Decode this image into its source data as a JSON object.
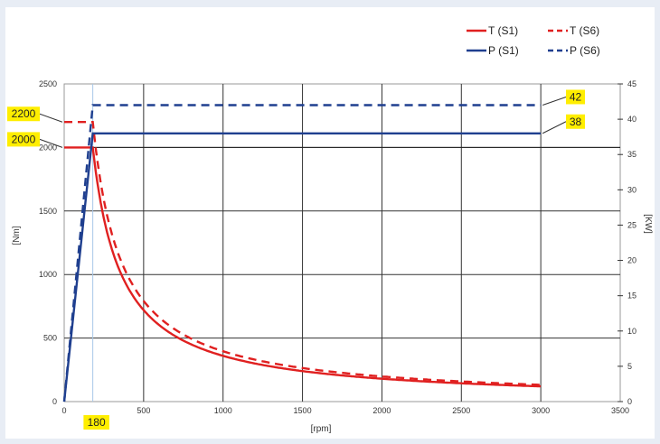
{
  "chart_data": {
    "type": "line",
    "title": "",
    "xlabel": "[rpm]",
    "ylabel_left": "[Nm]",
    "ylabel_right": "[KW]",
    "xlim": [
      0,
      3500
    ],
    "ylim_left": [
      0,
      2500
    ],
    "ylim_right": [
      0,
      45
    ],
    "x_ticks": [
      0,
      500,
      1000,
      1500,
      2000,
      2500,
      3000,
      3500
    ],
    "y_ticks_left": [
      0,
      500,
      1000,
      1500,
      2000,
      2500
    ],
    "y_ticks_right": [
      0,
      5,
      10,
      15,
      20,
      25,
      30,
      35,
      40,
      45
    ],
    "grid": true,
    "legend_position": "top-right",
    "series": [
      {
        "name": "T (S1)",
        "axis": "left",
        "style": "solid",
        "color": "#e02020",
        "x": [
          0,
          180,
          200,
          250,
          300,
          400,
          500,
          600,
          800,
          1000,
          1200,
          1500,
          2000,
          2500,
          3000
        ],
        "y": [
          2000,
          2000,
          1810,
          1450,
          1210,
          905,
          725,
          605,
          455,
          365,
          305,
          240,
          180,
          145,
          120
        ]
      },
      {
        "name": "T (S6)",
        "axis": "left",
        "style": "dashed",
        "color": "#e02020",
        "x": [
          0,
          180,
          200,
          250,
          300,
          400,
          500,
          600,
          800,
          1000,
          1200,
          1500,
          2000,
          2500,
          3000
        ],
        "y": [
          2200,
          2200,
          2000,
          1600,
          1340,
          1000,
          800,
          670,
          500,
          400,
          335,
          265,
          200,
          160,
          130
        ]
      },
      {
        "name": "P (S1)",
        "axis": "right",
        "style": "solid",
        "color": "#1f3f8f",
        "x": [
          0,
          180,
          3000
        ],
        "y": [
          0,
          38,
          38
        ]
      },
      {
        "name": "P (S6)",
        "axis": "right",
        "style": "dashed",
        "color": "#1f3f8f",
        "x": [
          0,
          180,
          3000
        ],
        "y": [
          0,
          42,
          42
        ]
      }
    ],
    "reference_lines": [
      {
        "axis": "x",
        "value": 180,
        "color": "#a8c8e8"
      },
      {
        "axis": "left",
        "value": 2000,
        "color": "#222222"
      }
    ],
    "callouts": [
      {
        "text": "2200",
        "axis": "left",
        "value": 2200,
        "side": "left"
      },
      {
        "text": "2000",
        "axis": "left",
        "value": 2000,
        "side": "left"
      },
      {
        "text": "42",
        "axis": "right",
        "value": 42,
        "side": "right"
      },
      {
        "text": "38",
        "axis": "right",
        "value": 38,
        "side": "right"
      },
      {
        "text": "180",
        "axis": "x",
        "value": 180,
        "side": "bottom"
      }
    ],
    "callout_color": "#ffee00"
  }
}
